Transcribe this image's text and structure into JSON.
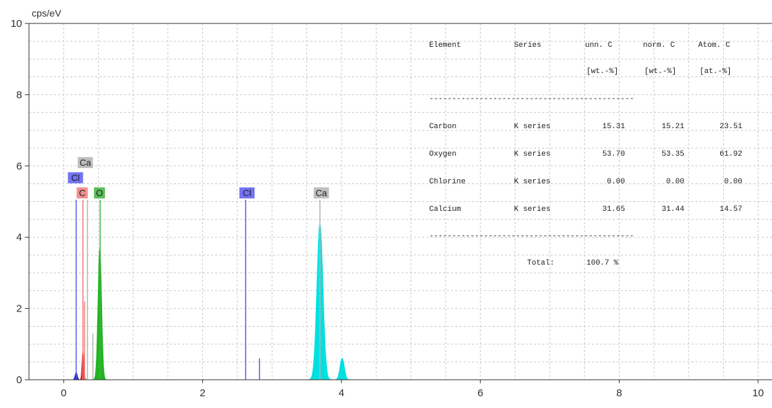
{
  "chart_data": {
    "type": "area",
    "ylabel": "cps/eV",
    "xlim": [
      -0.5,
      10.2
    ],
    "ylim": [
      0,
      10
    ],
    "xticks": [
      "0",
      "2",
      "4",
      "6",
      "8",
      "10"
    ],
    "yticks": [
      "0",
      "2",
      "4",
      "6",
      "8",
      "10"
    ],
    "grid": true,
    "series": [
      {
        "color": "#22b422",
        "peaks": [
          {
            "x": 0.52,
            "y": 3.7,
            "w": 0.05
          }
        ],
        "label": "O"
      },
      {
        "color": "#e02020",
        "peaks": [
          {
            "x": 0.277,
            "y": 0.8,
            "w": 0.025
          }
        ],
        "label": "C"
      },
      {
        "color": "#00e0e0",
        "peaks": [
          {
            "x": 3.69,
            "y": 4.4,
            "w": 0.085
          },
          {
            "x": 4.01,
            "y": 0.6,
            "w": 0.06
          }
        ],
        "label": "Ca"
      },
      {
        "color": "#2020c0",
        "peaks": [
          {
            "x": 0.18,
            "y": 0.2,
            "w": 0.03
          }
        ],
        "label": "Cl"
      }
    ],
    "markers": [
      {
        "label": "Cl",
        "x": [
          0.18,
          2.62
        ],
        "height": 5.05,
        "color": "#5a5af0"
      },
      {
        "label": "C",
        "x": [
          0.277
        ],
        "height": 5.05,
        "color": "#f07a7a"
      },
      {
        "label": "O",
        "x": [
          0.525
        ],
        "height": 5.05,
        "color": "#3cb43c"
      },
      {
        "label": "Ca",
        "x": [
          0.341,
          3.69
        ],
        "height": 5.05,
        "color": "#b4b4b4"
      }
    ],
    "minor_lines": [
      {
        "x": 2.82,
        "y": 0.6,
        "color": "#5a5af0"
      },
      {
        "x": 0.3,
        "y": 2.2,
        "color": "#f07a7a"
      },
      {
        "x": 0.42,
        "y": 1.3,
        "color": "#b4b4b4"
      }
    ],
    "table": {
      "headers": [
        "Element",
        "Series",
        "unn. C",
        "norm. C",
        "Atom. C"
      ],
      "units": [
        "",
        "",
        "[wt.-%]",
        "[wt.-%]",
        "[at.-%]"
      ],
      "separator": "---------------------------------------------",
      "rows": [
        [
          "Carbon",
          "K series",
          "15.31",
          "15.21",
          "23.51"
        ],
        [
          "Oxygen",
          "K series",
          "53.70",
          "53.35",
          "61.92"
        ],
        [
          "Chlorine",
          "K series",
          "0.00",
          "0.00",
          "0.00"
        ],
        [
          "Calcium",
          "K series",
          "31.65",
          "31.44",
          "14.57"
        ]
      ],
      "total_label": "Total:",
      "total_value": "100.7 %"
    }
  }
}
